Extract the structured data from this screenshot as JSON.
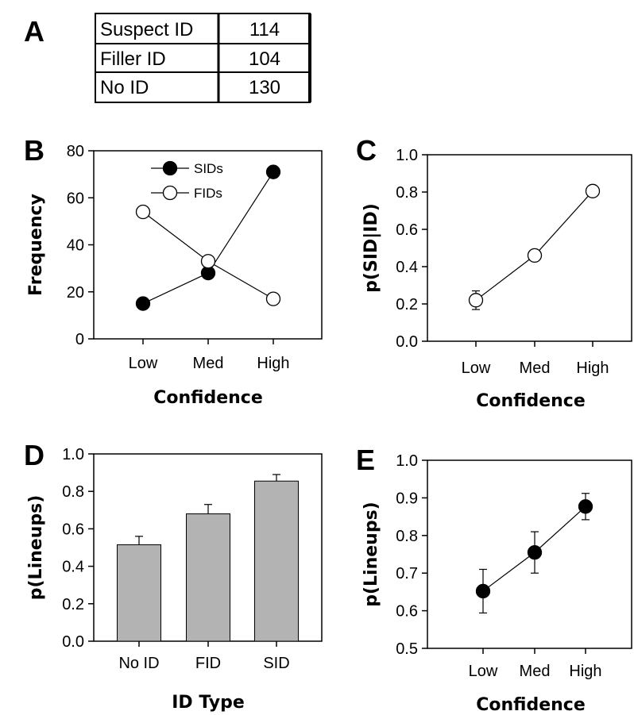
{
  "table": {
    "panel": "A",
    "rows": [
      {
        "label": "Suspect ID",
        "value": "114"
      },
      {
        "label": "Filler ID",
        "value": "104"
      },
      {
        "label": "No ID",
        "value": "130"
      }
    ]
  },
  "chart_data": [
    {
      "panel": "B",
      "type": "line",
      "categories": [
        "Low",
        "Med",
        "High"
      ],
      "series": [
        {
          "name": "SIDs",
          "values": [
            15,
            28,
            71
          ],
          "marker": "filled-circle"
        },
        {
          "name": "FIDs",
          "values": [
            54,
            33,
            17
          ],
          "marker": "open-circle"
        }
      ],
      "xlabel": "Confidence",
      "ylabel": "Frequency",
      "ylim": [
        0,
        80
      ],
      "yticks": [
        "0",
        "20",
        "40",
        "60",
        "80"
      ],
      "legend": "top-center",
      "grid": false
    },
    {
      "panel": "C",
      "type": "line",
      "categories": [
        "Low",
        "Med",
        "High"
      ],
      "series": [
        {
          "values": [
            0.22,
            0.46,
            0.805
          ],
          "errors": [
            0.05,
            0.02,
            0.03
          ],
          "marker": "open-circle"
        }
      ],
      "xlabel": "Confidence",
      "ylabel": "p(SID|ID)",
      "ylim": [
        0,
        1
      ],
      "yticks": [
        "0.0",
        "0.2",
        "0.4",
        "0.6",
        "0.8",
        "1.0"
      ],
      "grid": false
    },
    {
      "panel": "D",
      "type": "bar",
      "categories": [
        "No ID",
        "FID",
        "SID"
      ],
      "values": [
        0.515,
        0.68,
        0.855
      ],
      "errors": [
        0.045,
        0.05,
        0.035
      ],
      "bar_color": "#b3b3b3",
      "xlabel": "ID Type",
      "ylabel": "p(Lineups)",
      "ylim": [
        0,
        1
      ],
      "yticks": [
        "0.0",
        "0.2",
        "0.4",
        "0.6",
        "0.8",
        "1.0"
      ],
      "grid": false
    },
    {
      "panel": "E",
      "type": "line",
      "categories": [
        "Low",
        "Med",
        "High"
      ],
      "series": [
        {
          "values": [
            0.652,
            0.755,
            0.877
          ],
          "errors": [
            0.058,
            0.055,
            0.035
          ],
          "marker": "filled-circle"
        }
      ],
      "xlabel": "Confidence",
      "ylabel": "p(Lineups)",
      "ylim": [
        0.5,
        1
      ],
      "yticks": [
        "0.5",
        "0.6",
        "0.7",
        "0.8",
        "0.9",
        "1.0"
      ],
      "grid": false
    }
  ]
}
